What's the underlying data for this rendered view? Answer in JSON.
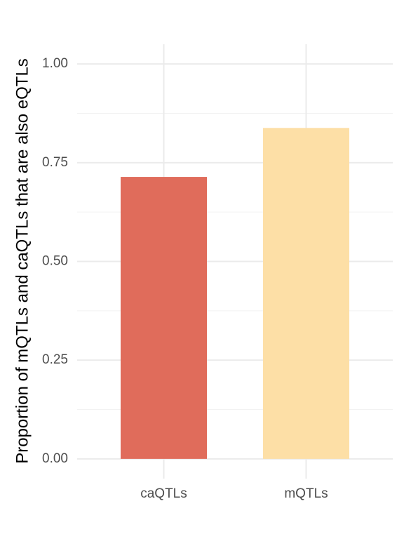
{
  "chart_data": {
    "type": "bar",
    "y_label": "Proportion of mQTLs and caQTLs that are also eQTLs",
    "categories": [
      "caQTLs",
      "mQTLs"
    ],
    "values": [
      0.714,
      0.838
    ],
    "colors": [
      "#e06c5b",
      "#fddfa6"
    ],
    "ylim": [
      -0.05,
      1.05
    ],
    "yticks": [
      {
        "value": 0,
        "label": "0.00"
      },
      {
        "value": 0.25,
        "label": "0.25"
      },
      {
        "value": 0.5,
        "label": "0.50"
      },
      {
        "value": 0.75,
        "label": "0.75"
      },
      {
        "value": 1,
        "label": "1.00"
      }
    ],
    "grid": true
  }
}
